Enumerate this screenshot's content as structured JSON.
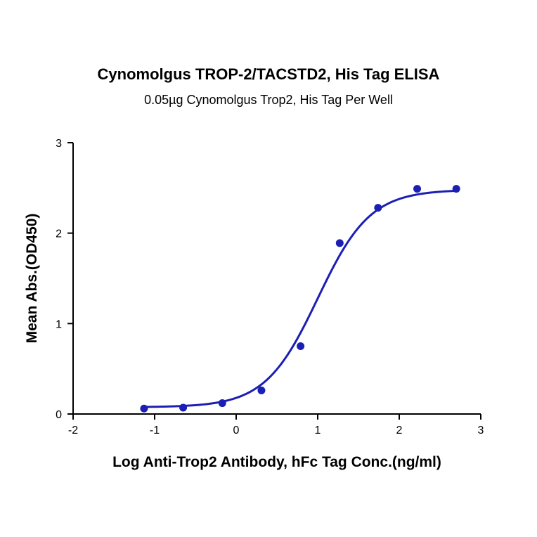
{
  "chart_data": {
    "type": "scatter",
    "title": "Cynomolgus TROP-2/TACSTD2, His Tag ELISA",
    "subtitle": "0.05µg Cynomolgus Trop2, His Tag Per Well",
    "xlabel": "Log Anti-Trop2 Antibody, hFc Tag Conc.(ng/ml)",
    "ylabel": "Mean Abs.(OD450)",
    "xlim": [
      -2,
      3
    ],
    "ylim": [
      0,
      3
    ],
    "xticks": [
      "-2",
      "-1",
      "0",
      "1",
      "2",
      "3"
    ],
    "yticks": [
      "0",
      "1",
      "2",
      "3"
    ],
    "grid": false,
    "series": [
      {
        "x": [
          -1.13,
          -0.65,
          -0.17,
          0.31,
          0.79,
          1.27,
          1.74,
          2.22,
          2.7
        ],
        "y": [
          0.06,
          0.07,
          0.12,
          0.26,
          0.75,
          1.89,
          2.28,
          2.49,
          2.49
        ]
      }
    ],
    "fit": {
      "model": "4PL",
      "bottom": 0.075,
      "top": 2.48,
      "logEC50": 1.0,
      "hill": 1.35
    },
    "colors": {
      "series": "#1c1fb3",
      "axis": "#000000"
    }
  }
}
